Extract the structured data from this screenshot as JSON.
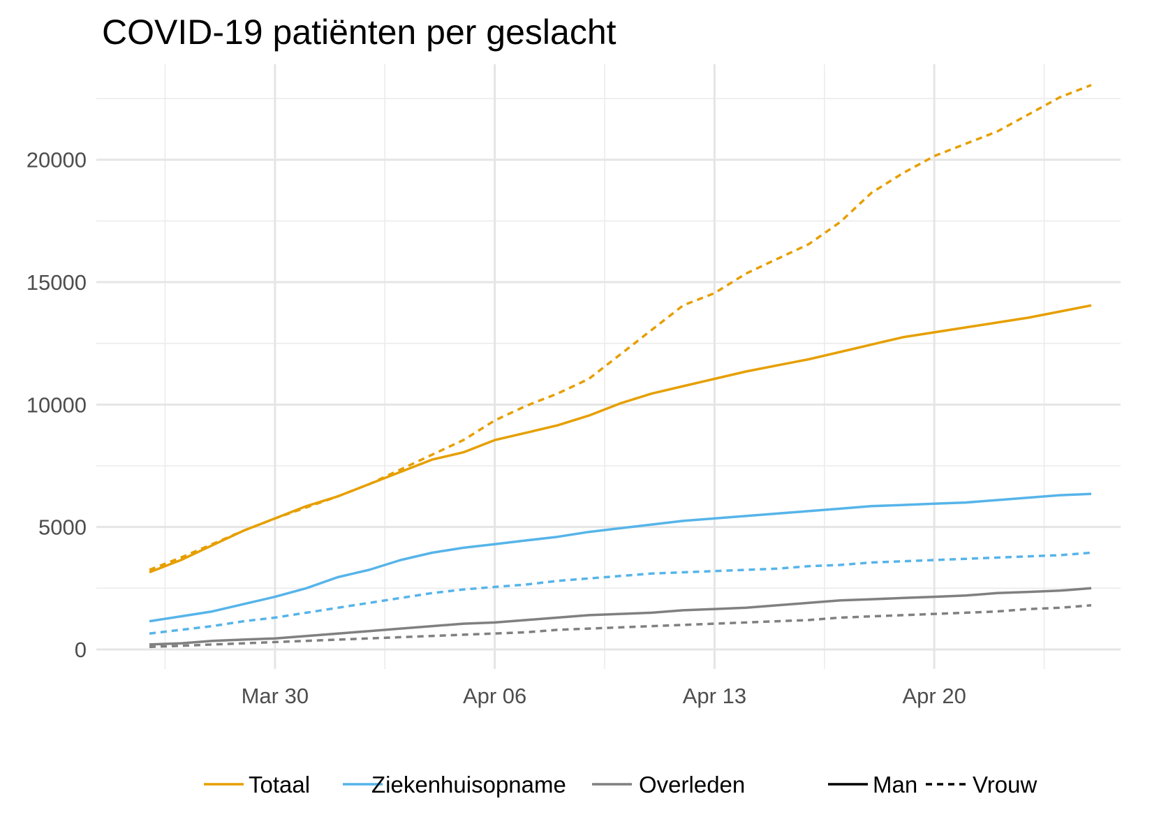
{
  "chart_data": {
    "type": "line",
    "title": "COVID-19 patiënten per geslacht",
    "xlabel": "",
    "ylabel": "",
    "x_start": "2020-03-26",
    "x": [
      "Mar 26",
      "Mar 27",
      "Mar 28",
      "Mar 29",
      "Mar 30",
      "Mar 31",
      "Apr 01",
      "Apr 02",
      "Apr 03",
      "Apr 04",
      "Apr 05",
      "Apr 06",
      "Apr 07",
      "Apr 08",
      "Apr 09",
      "Apr 10",
      "Apr 11",
      "Apr 12",
      "Apr 13",
      "Apr 14",
      "Apr 15",
      "Apr 16",
      "Apr 17",
      "Apr 18",
      "Apr 19",
      "Apr 20",
      "Apr 21",
      "Apr 22",
      "Apr 23",
      "Apr 24",
      "Apr 25"
    ],
    "x_ticks": [
      {
        "label": "Mar 30",
        "day": 4
      },
      {
        "label": "Apr 06",
        "day": 11
      },
      {
        "label": "Apr 13",
        "day": 18
      },
      {
        "label": "Apr 20",
        "day": 25
      }
    ],
    "y_ticks": [
      0,
      5000,
      10000,
      15000,
      20000
    ],
    "ylim": [
      -800,
      23900
    ],
    "grid": true,
    "legend_position": "bottom",
    "series": [
      {
        "name": "Totaal",
        "gender": "Man",
        "color": "#E69F00",
        "dash": "solid",
        "values": [
          3150,
          3650,
          4250,
          4850,
          5350,
          5850,
          6250,
          6750,
          7250,
          7750,
          8050,
          8550,
          8850,
          9150,
          9550,
          10050,
          10450,
          10750,
          11050,
          11350,
          11600,
          11850,
          12150,
          12450,
          12750,
          12950,
          13150,
          13350,
          13550,
          13800,
          14050
        ]
      },
      {
        "name": "Totaal",
        "gender": "Vrouw",
        "color": "#E69F00",
        "dash": "dotted",
        "values": [
          3250,
          3750,
          4300,
          4850,
          5350,
          5800,
          6250,
          6750,
          7350,
          7950,
          8550,
          9350,
          9950,
          10450,
          11050,
          12050,
          13050,
          14050,
          14550,
          15350,
          15950,
          16550,
          17450,
          18650,
          19450,
          20150,
          20650,
          21150,
          21850,
          22550,
          23050
        ]
      },
      {
        "name": "Ziekenhuisopname",
        "gender": "Man",
        "color": "#56B4E9",
        "dash": "solid",
        "values": [
          1150,
          1350,
          1550,
          1850,
          2150,
          2500,
          2950,
          3250,
          3650,
          3950,
          4150,
          4300,
          4450,
          4600,
          4800,
          4950,
          5100,
          5250,
          5350,
          5450,
          5550,
          5650,
          5750,
          5850,
          5900,
          5950,
          6000,
          6100,
          6200,
          6300,
          6350
        ]
      },
      {
        "name": "Ziekenhuisopname",
        "gender": "Vrouw",
        "color": "#56B4E9",
        "dash": "dotted",
        "values": [
          650,
          800,
          950,
          1150,
          1300,
          1500,
          1700,
          1900,
          2100,
          2300,
          2450,
          2550,
          2650,
          2800,
          2900,
          3000,
          3100,
          3150,
          3200,
          3250,
          3300,
          3400,
          3450,
          3550,
          3600,
          3650,
          3700,
          3750,
          3800,
          3850,
          3950
        ]
      },
      {
        "name": "Overleden",
        "gender": "Man",
        "color": "#808080",
        "dash": "solid",
        "values": [
          200,
          250,
          350,
          400,
          450,
          550,
          650,
          750,
          850,
          950,
          1050,
          1100,
          1200,
          1300,
          1400,
          1450,
          1500,
          1600,
          1650,
          1700,
          1800,
          1900,
          2000,
          2050,
          2100,
          2150,
          2200,
          2300,
          2350,
          2400,
          2500
        ]
      },
      {
        "name": "Overleden",
        "gender": "Vrouw",
        "color": "#808080",
        "dash": "dotted",
        "values": [
          100,
          150,
          200,
          250,
          300,
          350,
          400,
          450,
          500,
          550,
          600,
          650,
          700,
          800,
          850,
          900,
          950,
          1000,
          1050,
          1100,
          1150,
          1200,
          1300,
          1350,
          1400,
          1450,
          1500,
          1550,
          1650,
          1700,
          1800
        ]
      }
    ],
    "legend": {
      "colors": [
        {
          "label": "Totaal",
          "color": "#E69F00"
        },
        {
          "label": "Ziekenhuisopname",
          "color": "#56B4E9"
        },
        {
          "label": "Overleden",
          "color": "#808080"
        }
      ],
      "linetypes": [
        {
          "label": "Man",
          "dash": "solid"
        },
        {
          "label": "Vrouw",
          "dash": "dotted"
        }
      ]
    }
  }
}
